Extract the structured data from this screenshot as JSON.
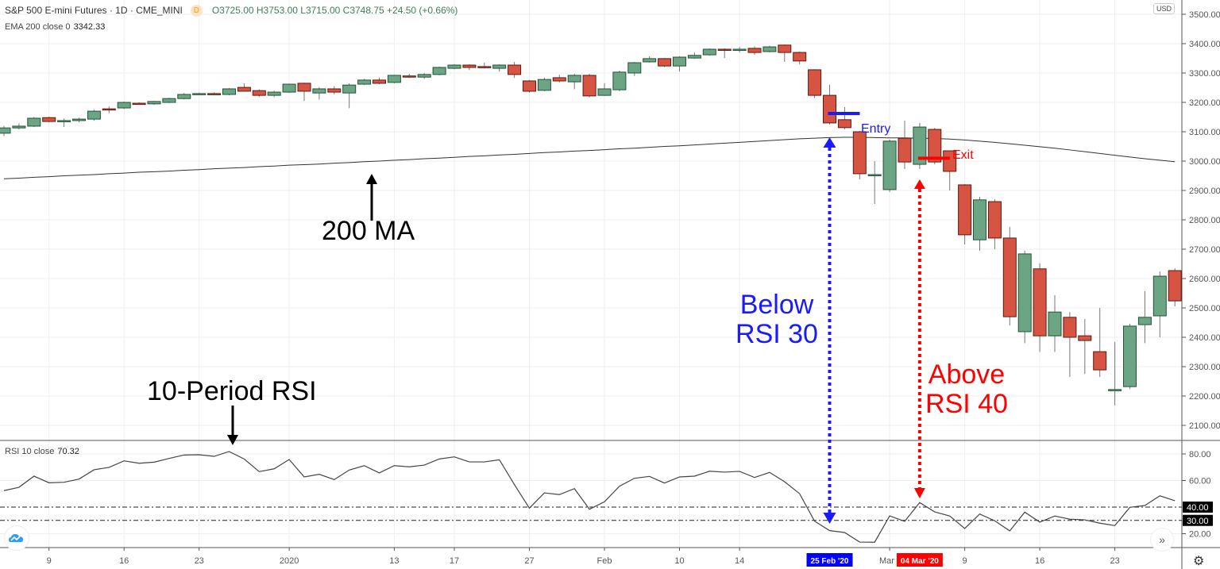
{
  "header": {
    "symbol": "S&P 500 E-mini Futures · 1D · CME_MINI",
    "badge": "D",
    "ohlc": "O3725.00 H3753.00 L3715.00 C3748.75 +24.50 (+0.66%)",
    "indicator_label": "EMA 200 close 0",
    "indicator_value": "3342.33",
    "currency": "USD"
  },
  "rsi_pane": {
    "label": "RSI 10 close",
    "value": "70.32"
  },
  "price_axis": {
    "ticks": [
      "3500.00",
      "3400.00",
      "3300.00",
      "3200.00",
      "3100.00",
      "3000.00",
      "2900.00",
      "2800.00",
      "2700.00",
      "2600.00",
      "2500.00",
      "2400.00",
      "2300.00",
      "2200.00",
      "2100.00"
    ],
    "range": [
      2060,
      3550
    ]
  },
  "rsi_axis": {
    "ticks": [
      "80.00",
      "60.00",
      "20.00"
    ],
    "levels": [
      "40.00",
      "30.00"
    ],
    "range": [
      8,
      90
    ]
  },
  "time_axis": {
    "ticks": [
      {
        "label": "9",
        "index": 3
      },
      {
        "label": "16",
        "index": 8
      },
      {
        "label": "23",
        "index": 13
      },
      {
        "label": "2020",
        "index": 19
      },
      {
        "label": "13",
        "index": 26
      },
      {
        "label": "17",
        "index": 30
      },
      {
        "label": "27",
        "index": 35
      },
      {
        "label": "Feb",
        "index": 40
      },
      {
        "label": "10",
        "index": 45
      },
      {
        "label": "14",
        "index": 49
      },
      {
        "label": "Mar",
        "index": 59
      },
      {
        "label": "9",
        "index": 64
      },
      {
        "label": "16",
        "index": 69
      },
      {
        "label": "23",
        "index": 74
      }
    ],
    "highlights": [
      {
        "label": "25 Feb '20",
        "index": 55,
        "color": "#0000ff"
      },
      {
        "label": "04 Mar '20",
        "index": 61,
        "color": "#ff0000"
      }
    ]
  },
  "colors": {
    "up": "#6ba583",
    "down": "#d75442",
    "up_border": "#225437",
    "down_border": "#5b1a13",
    "blue": "#1a1aff",
    "red": "#ff0000"
  },
  "annotations": {
    "ma_label": "200 MA",
    "rsi_label": "10-Period RSI",
    "below_line1": "Below",
    "below_line2": "RSI 30",
    "above_line1": "Above",
    "above_line2": "RSI 40",
    "entry": "Entry",
    "exit": "Exit"
  },
  "chart_data": {
    "type": "candlestick",
    "ohlc": [
      [
        3095,
        3120,
        3085,
        3113
      ],
      [
        3113,
        3128,
        3108,
        3119
      ],
      [
        3119,
        3150,
        3116,
        3146
      ],
      [
        3148,
        3151,
        3132,
        3135
      ],
      [
        3135,
        3145,
        3116,
        3138
      ],
      [
        3138,
        3148,
        3132,
        3143
      ],
      [
        3143,
        3175,
        3138,
        3170
      ],
      [
        3178,
        3186,
        3163,
        3175
      ],
      [
        3181,
        3203,
        3178,
        3200
      ],
      [
        3197,
        3200,
        3192,
        3195
      ],
      [
        3195,
        3205,
        3192,
        3203
      ],
      [
        3200,
        3216,
        3197,
        3213
      ],
      [
        3213,
        3232,
        3210,
        3227
      ],
      [
        3228,
        3233,
        3225,
        3230
      ],
      [
        3230,
        3234,
        3224,
        3227
      ],
      [
        3227,
        3249,
        3224,
        3246
      ],
      [
        3251,
        3265,
        3237,
        3238
      ],
      [
        3240,
        3244,
        3218,
        3224
      ],
      [
        3224,
        3240,
        3218,
        3235
      ],
      [
        3235,
        3264,
        3232,
        3262
      ],
      [
        3265,
        3267,
        3205,
        3238
      ],
      [
        3232,
        3252,
        3210,
        3246
      ],
      [
        3246,
        3255,
        3227,
        3235
      ],
      [
        3232,
        3265,
        3180,
        3259
      ],
      [
        3262,
        3280,
        3259,
        3276
      ],
      [
        3276,
        3284,
        3262,
        3265
      ],
      [
        3268,
        3294,
        3265,
        3292
      ],
      [
        3290,
        3297,
        3283,
        3289
      ],
      [
        3286,
        3300,
        3280,
        3295
      ],
      [
        3295,
        3322,
        3292,
        3319
      ],
      [
        3316,
        3330,
        3313,
        3327
      ],
      [
        3327,
        3330,
        3310,
        3319
      ],
      [
        3322,
        3335,
        3315,
        3320
      ],
      [
        3316,
        3330,
        3305,
        3327
      ],
      [
        3327,
        3338,
        3283,
        3295
      ],
      [
        3273,
        3276,
        3233,
        3238
      ],
      [
        3241,
        3284,
        3238,
        3278
      ],
      [
        3284,
        3294,
        3268,
        3273
      ],
      [
        3270,
        3297,
        3245,
        3292
      ],
      [
        3292,
        3297,
        3217,
        3222
      ],
      [
        3224,
        3265,
        3222,
        3246
      ],
      [
        3243,
        3308,
        3238,
        3303
      ],
      [
        3300,
        3338,
        3290,
        3335
      ],
      [
        3338,
        3357,
        3335,
        3349
      ],
      [
        3349,
        3351,
        3320,
        3324
      ],
      [
        3324,
        3357,
        3305,
        3354
      ],
      [
        3351,
        3370,
        3348,
        3360
      ],
      [
        3362,
        3384,
        3359,
        3381
      ],
      [
        3381,
        3384,
        3351,
        3378
      ],
      [
        3380,
        3389,
        3370,
        3381
      ],
      [
        3384,
        3391,
        3362,
        3370
      ],
      [
        3373,
        3393,
        3370,
        3389
      ],
      [
        3395,
        3397,
        3338,
        3370
      ],
      [
        3370,
        3373,
        3330,
        3341
      ],
      [
        3311,
        3313,
        3215,
        3224
      ],
      [
        3224,
        3260,
        3125,
        3130
      ],
      [
        3141,
        3184,
        3108,
        3114
      ],
      [
        3100,
        3103,
        2938,
        2957
      ],
      [
        2951,
        3000,
        2854,
        2954
      ],
      [
        2903,
        3073,
        2895,
        3068
      ],
      [
        3078,
        3138,
        2973,
        2997
      ],
      [
        2989,
        3130,
        2973,
        3116
      ],
      [
        3108,
        3113,
        2989,
        2997
      ],
      [
        3035,
        3035,
        2900,
        2965
      ],
      [
        2919,
        2922,
        2716,
        2749
      ],
      [
        2732,
        2878,
        2695,
        2868
      ],
      [
        2862,
        2870,
        2700,
        2738
      ],
      [
        2738,
        2776,
        2440,
        2470
      ],
      [
        2419,
        2695,
        2380,
        2684
      ],
      [
        2633,
        2652,
        2350,
        2405
      ],
      [
        2405,
        2543,
        2350,
        2486
      ],
      [
        2468,
        2486,
        2265,
        2400
      ],
      [
        2405,
        2462,
        2275,
        2389
      ],
      [
        2351,
        2500,
        2265,
        2289
      ],
      [
        2222,
        2384,
        2168,
        2222
      ],
      [
        2232,
        2446,
        2224,
        2438
      ],
      [
        2443,
        2557,
        2380,
        2468
      ],
      [
        2473,
        2624,
        2400,
        2608
      ],
      [
        2627,
        2635,
        2505,
        2524
      ]
    ],
    "ema200": [
      2940,
      2942,
      2945,
      2947,
      2950,
      2952,
      2954,
      2957,
      2959,
      2962,
      2964,
      2966,
      2969,
      2971,
      2974,
      2976,
      2978,
      2981,
      2983,
      2986,
      2988,
      2990,
      2993,
      2995,
      2998,
      3000,
      3003,
      3005,
      3008,
      3010,
      3013,
      3016,
      3018,
      3021,
      3023,
      3026,
      3029,
      3031,
      3034,
      3036,
      3039,
      3042,
      3044,
      3047,
      3050,
      3052,
      3055,
      3058,
      3061,
      3064,
      3067,
      3070,
      3073,
      3076,
      3078,
      3080,
      3081,
      3081,
      3080,
      3079,
      3079,
      3078,
      3077,
      3075,
      3072,
      3068,
      3064,
      3059,
      3054,
      3049,
      3044,
      3038,
      3032,
      3026,
      3020,
      3014,
      3008,
      3003,
      2998
    ],
    "rsi10": [
      52.4,
      54.9,
      63.3,
      58.3,
      58.7,
      61.1,
      68.1,
      69.9,
      74.8,
      73.0,
      73.8,
      76.6,
      79.2,
      79.4,
      78.2,
      81.8,
      76.2,
      66.7,
      68.8,
      75.8,
      62.7,
      64.7,
      60.7,
      67.9,
      71.2,
      65.7,
      71.2,
      70.3,
      71.6,
      76.2,
      77.8,
      74.0,
      74.0,
      75.6,
      57.0,
      39.2,
      50.7,
      49.4,
      53.9,
      38.4,
      44.0,
      55.7,
      61.7,
      63.1,
      58.1,
      62.7,
      63.3,
      67.0,
      66.3,
      66.9,
      62.3,
      66.1,
      59.1,
      50.1,
      29.4,
      22.3,
      20.9,
      13.7,
      13.6,
      33.4,
      29.3,
      43.4,
      36.4,
      33.3,
      23.9,
      34.8,
      29.7,
      22.1,
      36.2,
      28.7,
      33.3,
      30.9,
      30.4,
      27.9,
      26.1,
      39.8,
      41.2,
      48.5,
      44.8
    ],
    "entry_price": 3108,
    "exit_price": 3018,
    "entry_index": 55,
    "exit_index": 61
  }
}
